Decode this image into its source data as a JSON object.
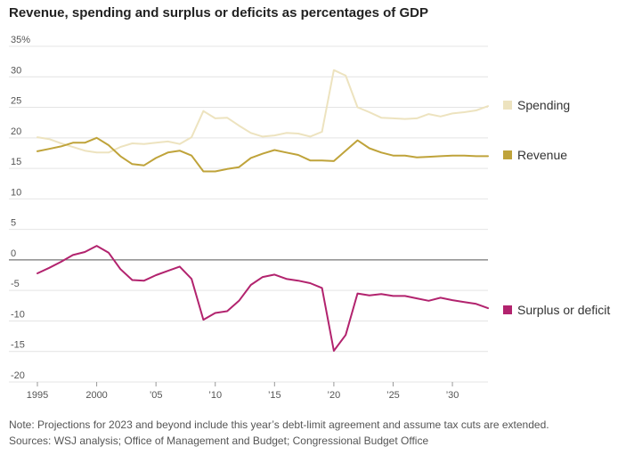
{
  "title": "Revenue, spending and surplus or deficits as percentages of GDP",
  "note": "Note: Projections for 2023 and beyond include this year’s debt-limit agreement and assume tax cuts are extended.",
  "sources": "Sources: WSJ analysis; Office of Management and Budget; Congressional Budget Office",
  "chart_data": {
    "type": "line",
    "title": "Revenue, spending and surplus or deficits as percentages of GDP",
    "xlabel": "",
    "ylabel": "",
    "xlim": [
      1995,
      2033
    ],
    "ylim": [
      -20,
      35
    ],
    "grid": true,
    "legend_placement": "right",
    "y_ticks": [
      {
        "value": 35,
        "label": "35%"
      },
      {
        "value": 30,
        "label": "30"
      },
      {
        "value": 25,
        "label": "25"
      },
      {
        "value": 20,
        "label": "20"
      },
      {
        "value": 15,
        "label": "15"
      },
      {
        "value": 10,
        "label": "10"
      },
      {
        "value": 5,
        "label": "5"
      },
      {
        "value": 0,
        "label": "0"
      },
      {
        "value": -5,
        "label": "-5"
      },
      {
        "value": -10,
        "label": "-10"
      },
      {
        "value": -15,
        "label": "-15"
      },
      {
        "value": -20,
        "label": "-20"
      }
    ],
    "x_ticks": [
      {
        "value": 1995,
        "label": "1995"
      },
      {
        "value": 2000,
        "label": "2000"
      },
      {
        "value": 2005,
        "label": "’05"
      },
      {
        "value": 2010,
        "label": "’10"
      },
      {
        "value": 2015,
        "label": "’15"
      },
      {
        "value": 2020,
        "label": "’20"
      },
      {
        "value": 2025,
        "label": "’25"
      },
      {
        "value": 2030,
        "label": "’30"
      }
    ],
    "x": [
      1995,
      1996,
      1997,
      1998,
      1999,
      2000,
      2001,
      2002,
      2003,
      2004,
      2005,
      2006,
      2007,
      2008,
      2009,
      2010,
      2011,
      2012,
      2013,
      2014,
      2015,
      2016,
      2017,
      2018,
      2019,
      2020,
      2021,
      2022,
      2023,
      2024,
      2025,
      2026,
      2027,
      2028,
      2029,
      2030,
      2031,
      2032,
      2033
    ],
    "series": [
      {
        "name": "Spending",
        "color": "#ede3bf",
        "values": [
          20.1,
          19.8,
          19.1,
          18.5,
          17.9,
          17.6,
          17.6,
          18.5,
          19.1,
          19.0,
          19.2,
          19.4,
          19.0,
          20.1,
          24.4,
          23.2,
          23.3,
          22.0,
          20.8,
          20.2,
          20.4,
          20.8,
          20.7,
          20.2,
          21.0,
          31.1,
          30.2,
          25.0,
          24.2,
          23.3,
          23.2,
          23.1,
          23.2,
          23.9,
          23.5,
          24.0,
          24.2,
          24.5,
          25.2
        ]
      },
      {
        "name": "Revenue",
        "color": "#bfa33a",
        "values": [
          17.8,
          18.2,
          18.6,
          19.2,
          19.2,
          20.0,
          18.8,
          17.0,
          15.7,
          15.5,
          16.7,
          17.6,
          17.9,
          17.1,
          14.5,
          14.5,
          14.9,
          15.2,
          16.7,
          17.4,
          18.0,
          17.6,
          17.2,
          16.3,
          16.3,
          16.2,
          17.9,
          19.6,
          18.3,
          17.6,
          17.1,
          17.1,
          16.8,
          16.9,
          17.0,
          17.1,
          17.1,
          17.0,
          17.0
        ]
      },
      {
        "name": "Surplus or deficit",
        "color": "#b2236e",
        "values": [
          -2.2,
          -1.3,
          -0.3,
          0.8,
          1.3,
          2.3,
          1.2,
          -1.5,
          -3.3,
          -3.4,
          -2.5,
          -1.8,
          -1.1,
          -3.1,
          -9.8,
          -8.7,
          -8.4,
          -6.7,
          -4.1,
          -2.8,
          -2.4,
          -3.1,
          -3.4,
          -3.8,
          -4.6,
          -14.9,
          -12.3,
          -5.5,
          -5.8,
          -5.6,
          -5.9,
          -5.9,
          -6.3,
          -6.7,
          -6.2,
          -6.6,
          -6.9,
          -7.2,
          -7.9
        ]
      }
    ]
  }
}
